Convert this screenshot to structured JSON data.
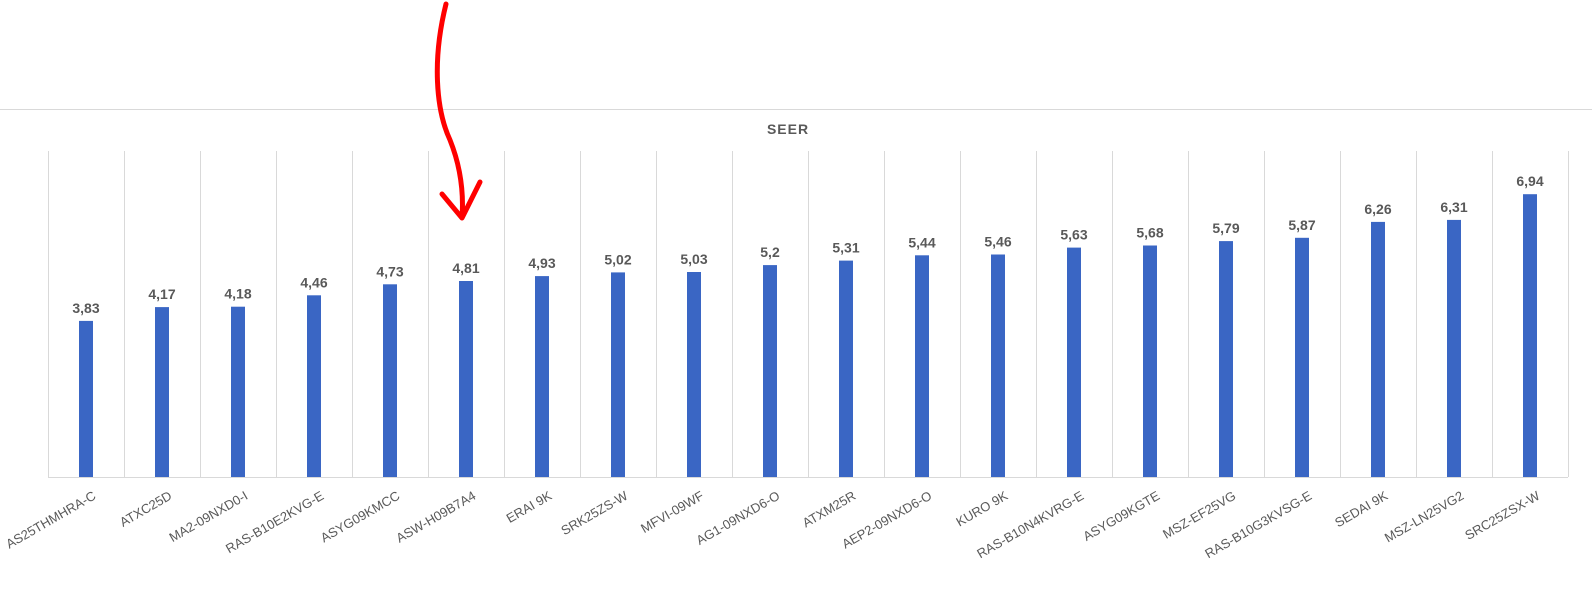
{
  "chart_data": {
    "type": "bar",
    "title": "SEER",
    "categories": [
      "AS25THMHRA-C",
      "ATXC25D",
      "MA2-09NXD0-I",
      "RAS-B10E2KVG-E",
      "ASYG09KMCC",
      "ASW-H09B7A4",
      "ERAI 9K",
      "SRK25ZS-W",
      "MFVI-09WF",
      "AG1-09NXD6-O",
      "ATXM25R",
      "AEP2-09NXD6-O",
      "KURO 9K",
      "RAS-B10N4KVRG-E",
      "ASYG09KGTE",
      "MSZ-EF25VG",
      "RAS-B10G3KVSG-E",
      "SEDAI 9K",
      "MSZ-LN25VG2",
      "SRC25ZSX-W"
    ],
    "values": [
      3.83,
      4.17,
      4.18,
      4.46,
      4.73,
      4.81,
      4.93,
      5.02,
      5.03,
      5.2,
      5.31,
      5.44,
      5.46,
      5.63,
      5.68,
      5.79,
      5.87,
      6.26,
      6.31,
      6.94
    ],
    "value_labels": [
      "3,83",
      "4,17",
      "4,18",
      "4,46",
      "4,73",
      "4,81",
      "4,93",
      "5,02",
      "5,03",
      "5,2",
      "5,31",
      "5,44",
      "5,46",
      "5,63",
      "5,68",
      "5,79",
      "5,87",
      "6,26",
      "6,31",
      "6,94"
    ],
    "ylim": [
      0,
      8
    ],
    "grid": "vertical",
    "legend": "none",
    "bar_color": "#3a66c4",
    "gridline_color": "#d9d9d9",
    "annotation": {
      "type": "arrow",
      "color": "#ff0000",
      "target_category": "ASW-H09B7A4"
    }
  }
}
